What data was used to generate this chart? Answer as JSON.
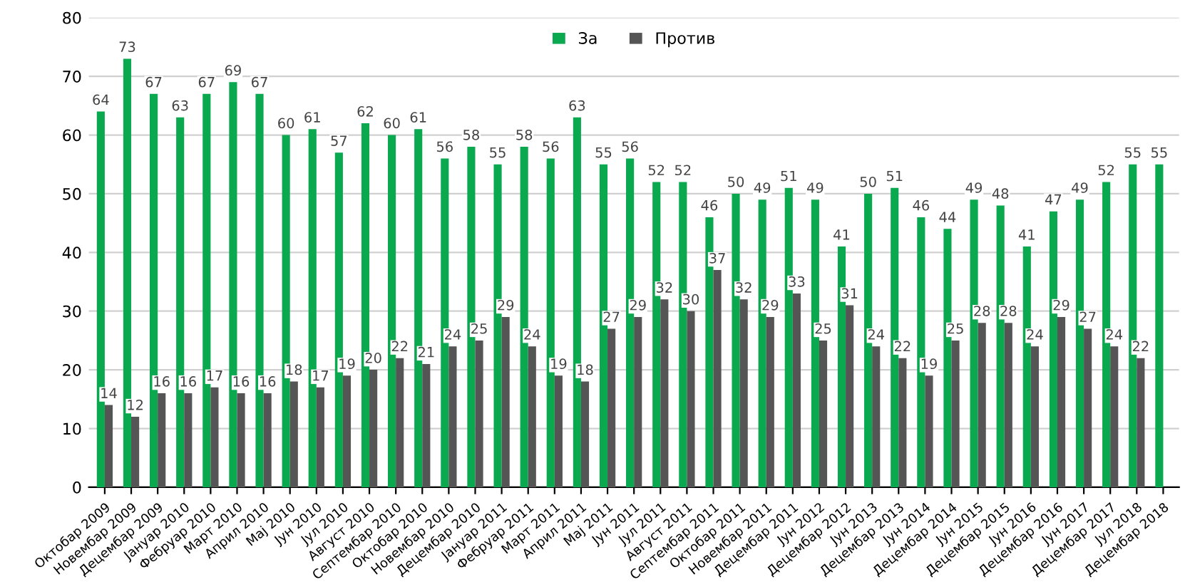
{
  "chart_data": {
    "type": "bar",
    "categories": [
      "Октобар 2009",
      "Новембар 2009",
      "Децембар 2009",
      "Јануар 2010",
      "Фебруар 2010",
      "Март 2010",
      "Април 2010",
      "Мај 2010",
      "Јун 2010",
      "Јул 2010",
      "Август 2010",
      "Септембар 2010",
      "Октобар 2010",
      "Новембар 2010",
      "Децембар 2010",
      "Јануар 2011",
      "Фебруар 2011",
      "Март 2011",
      "Април 2011",
      "Мај 2011",
      "Јун 2011",
      "Јул 2011",
      "Август 2011",
      "Септембар 2011",
      "Октобар 2011",
      "Новембар 2011",
      "Децембар 2011",
      "Јун 2012",
      "Децембар 2012",
      "Јун 2013",
      "Децембар 2013",
      "Јун 2014",
      "Децембар 2014",
      "Јун 2015",
      "Децембар 2015",
      "Јун 2016",
      "Децембар 2016",
      "Јун 2017",
      "Децембар 2017",
      "Јул 2018",
      "Децембар 2018"
    ],
    "series": [
      {
        "name": "За",
        "color": "#0aa84f",
        "values": [
          64,
          73,
          67,
          63,
          67,
          69,
          67,
          60,
          61,
          57,
          62,
          60,
          61,
          56,
          58,
          55,
          58,
          56,
          63,
          55,
          56,
          52,
          52,
          46,
          50,
          49,
          51,
          49,
          41,
          50,
          51,
          46,
          44,
          49,
          48,
          41,
          47,
          49,
          52,
          55,
          55
        ]
      },
      {
        "name": "Против",
        "color": "#555555",
        "values": [
          14,
          12,
          16,
          16,
          17,
          16,
          16,
          18,
          17,
          19,
          20,
          22,
          21,
          24,
          25,
          29,
          24,
          19,
          18,
          27,
          29,
          32,
          30,
          37,
          32,
          29,
          33,
          25,
          31,
          24,
          22,
          19,
          25,
          28,
          28,
          24,
          29,
          27,
          24,
          22,
          null
        ]
      }
    ],
    "ylim": [
      0,
      80
    ],
    "yticks": [
      0,
      10,
      20,
      30,
      40,
      50,
      60,
      70,
      80
    ],
    "grid": "y",
    "legend": "top",
    "data_labels": true
  }
}
